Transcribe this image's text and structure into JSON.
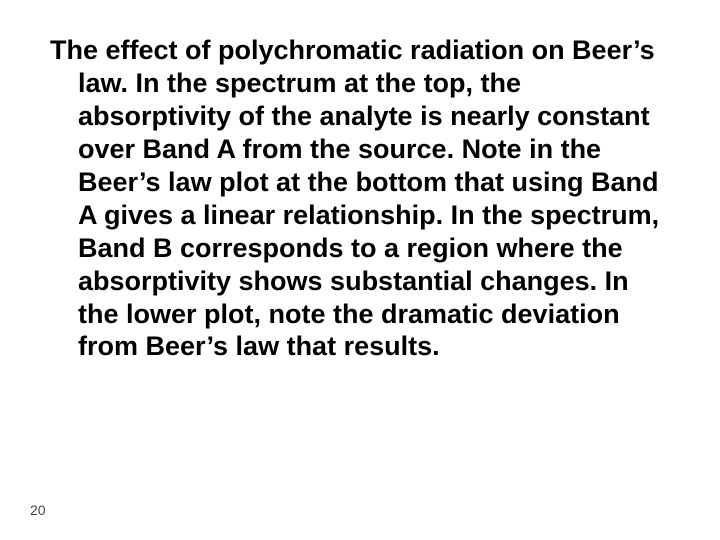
{
  "slide": {
    "body_text": "The effect of polychromatic radiation on Beer’s law. In the spectrum at the top, the absorptivity of the analyte is nearly constant over Band A from the source. Note in the Beer’s law plot at the bottom that using Band A gives a linear relationship. In the spectrum, Band B corresponds to a region where the absorptivity shows substantial changes. In the lower plot, note the dramatic deviation from Beer’s law that results.",
    "page_number": "20",
    "text_color": "#000000",
    "background_color": "#ffffff",
    "font_size_pt": 20,
    "font_weight": "bold",
    "font_family": "Arial",
    "page_number_color": "#444444",
    "page_number_fontsize": 14
  }
}
